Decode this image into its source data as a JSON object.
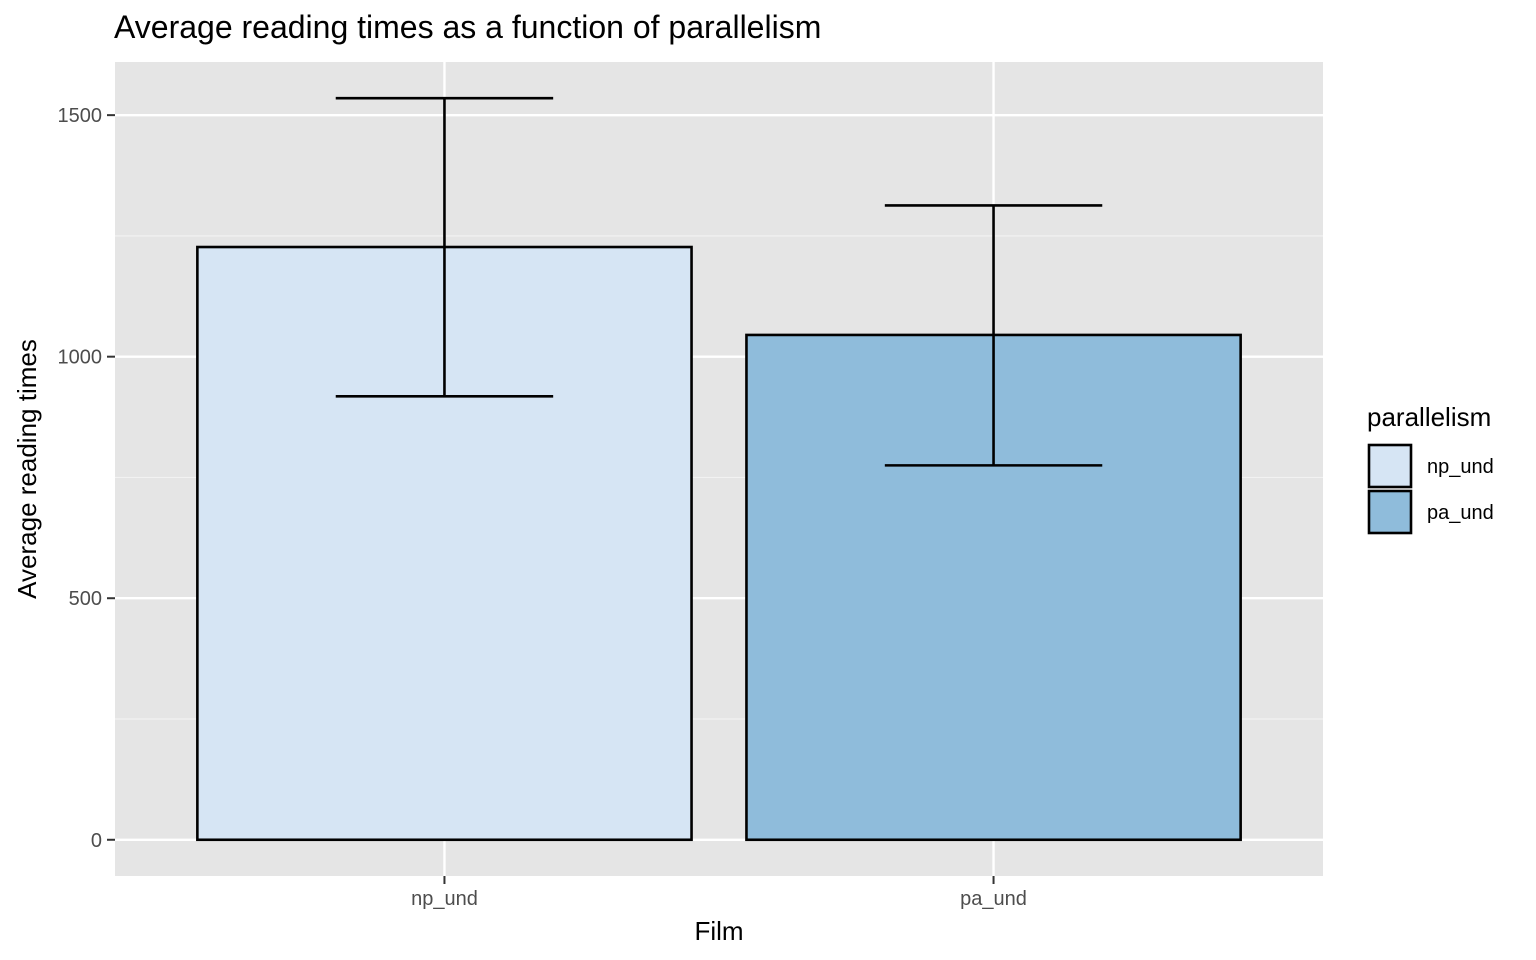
{
  "chart_data": {
    "type": "bar",
    "title": "Average reading times as a function of parallelism",
    "xlabel": "Film",
    "ylabel": "Average reading times",
    "categories": [
      "np_und",
      "pa_und"
    ],
    "values": [
      1227,
      1045
    ],
    "error_bars": [
      {
        "category": "np_und",
        "low": 918,
        "high": 1535
      },
      {
        "category": "pa_und",
        "low": 775,
        "high": 1313
      }
    ],
    "ylim": [
      -75,
      1610
    ],
    "yticks": [
      0,
      500,
      1000,
      1500
    ],
    "ytick_labels": [
      "0",
      "500",
      "1000",
      "1500"
    ],
    "grid": true,
    "legend": {
      "title": "parallelism",
      "placement": "right",
      "entries": [
        {
          "label": "np_und",
          "color": "#d6e5f4"
        },
        {
          "label": "pa_und",
          "color": "#8fbcdb"
        }
      ]
    },
    "colors": {
      "panel_background": "#e5e5e5",
      "grid_major": "#ffffff",
      "grid_minor": "#f2f2f2",
      "bar_outline": "#000000",
      "tick_text": "#4d4d4d",
      "tick_mark": "#333333"
    }
  }
}
